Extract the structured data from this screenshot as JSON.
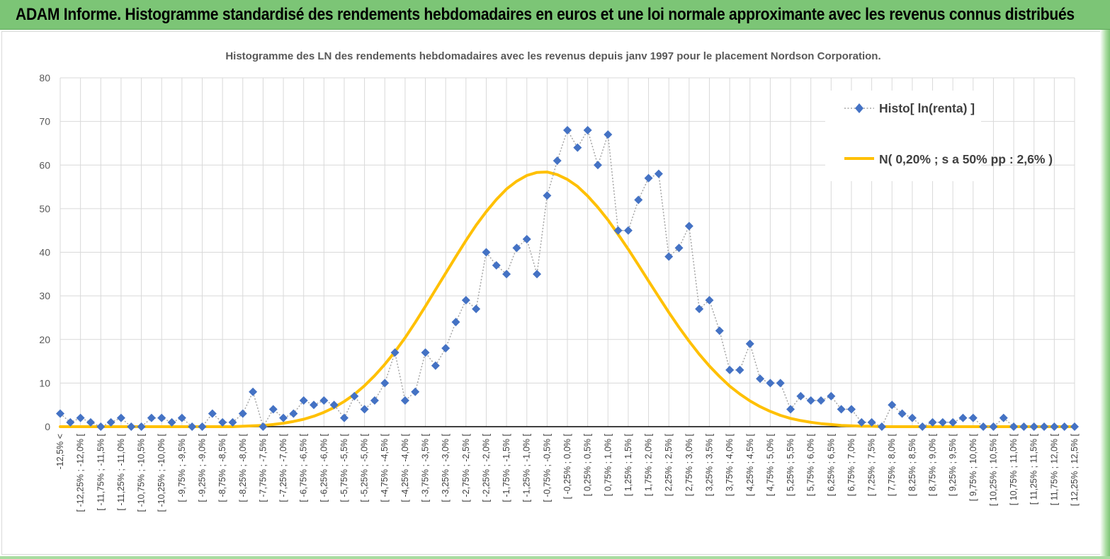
{
  "header": {
    "title": "ADAM Informe. Histogramme standardisé des rendements hebdomadaires en euros et une loi normale approximante avec les revenus connus distribués"
  },
  "colors": {
    "header_bg": "#7cc576",
    "histo_marker": "#4472c4",
    "histo_line": "#a5a5a5",
    "normal_line": "#ffc000",
    "axis": "#000000",
    "grid": "#d9d9d9"
  },
  "chart_data": {
    "type": "line",
    "title": "Histogramme des LN des rendements hebdomadaires avec les revenus depuis janv 1997 pour le placement Nordson Corporation.",
    "ylim": [
      0,
      80
    ],
    "yticks": [
      0,
      10,
      20,
      30,
      40,
      50,
      60,
      70,
      80
    ],
    "grid": true,
    "legend_position": "top-right",
    "categories": [
      "-12,5% <",
      "[ -12,25% ; -12,0% [",
      "[ -11,75% ; -11,5% [",
      "[ -11,25% ; -11,0% [",
      "[ -10,75% ; -10,5% [",
      "[ -10,25% ; -10,0% [",
      "[ -9,75% ; -9,5% [",
      "[ -9,25% ; -9,0% [",
      "[ -8,75% ; -8,5% [",
      "[ -8,25% ; -8,0% [",
      "[ -7,75% ; -7,5% [",
      "[ -7,25% ; -7,0% [",
      "[ -6,75% ; -6,5% [",
      "[ -6,25% ; -6,0% [",
      "[ -5,75% ; -5,5% [",
      "[ -5,25% ; -5,0% [",
      "[ -4,75% ; -4,5% [",
      "[ -4,25% ; -4,0% [",
      "[ -3,75% ; -3,5% [",
      "[ -3,25% ; -3,0% [",
      "[ -2,75% ; -2,5% [",
      "[ -2,25% ; -2,0% [",
      "[ -1,75% ; -1,5% [",
      "[ -1,25% ; -1,0% [",
      "[ -0,75% ; -0,5% [",
      "[ -0,25% ; 0,0% [",
      "[ 0,25% ; 0,5% [",
      "[ 0,75% ; 1,0% [",
      "[ 1,25% ; 1,5% [",
      "[ 1,75% ; 2,0% [",
      "[ 2,25% ; 2,5% [",
      "[ 2,75% ; 3,0% [",
      "[ 3,25% ; 3,5% [",
      "[ 3,75% ; 4,0% [",
      "[ 4,25% ; 4,5% [",
      "[ 4,75% ; 5,0% [",
      "[ 5,25% ; 5,5% [",
      "[ 5,75% ; 6,0% [",
      "[ 6,25% ; 6,5% [",
      "[ 6,75% ; 7,0% [",
      "[ 7,25% ; 7,5% [",
      "[ 7,75% ; 8,0% [",
      "[ 8,25% ; 8,5% [",
      "[ 8,75% ; 9,0% [",
      "[ 9,25% ; 9,5% [",
      "[ 9,75% ; 10,0% [",
      "[ 10,25% ; 10,5% [",
      "[ 10,75% ; 11,0% [",
      "[ 11,25% ; 11,5% [",
      "[ 11,75% ; 12,0% [",
      "[ 12,25% ; 12,5% ["
    ],
    "x": [
      -12.5,
      -12.25,
      -12.0,
      -11.75,
      -11.5,
      -11.25,
      -11.0,
      -10.75,
      -10.5,
      -10.25,
      -10.0,
      -9.75,
      -9.5,
      -9.25,
      -9.0,
      -8.75,
      -8.5,
      -8.25,
      -8.0,
      -7.75,
      -7.5,
      -7.25,
      -7.0,
      -6.75,
      -6.5,
      -6.25,
      -6.0,
      -5.75,
      -5.5,
      -5.25,
      -5.0,
      -4.75,
      -4.5,
      -4.25,
      -4.0,
      -3.75,
      -3.5,
      -3.25,
      -3.0,
      -2.75,
      -2.5,
      -2.25,
      -2.0,
      -1.75,
      -1.5,
      -1.25,
      -1.0,
      -0.75,
      -0.5,
      -0.25,
      0.0,
      0.25,
      0.5,
      0.75,
      1.0,
      1.25,
      1.5,
      1.75,
      2.0,
      2.25,
      2.5,
      2.75,
      3.0,
      3.25,
      3.5,
      3.75,
      4.0,
      4.25,
      4.5,
      4.75,
      5.0,
      5.25,
      5.5,
      5.75,
      6.0,
      6.25,
      6.5,
      6.75,
      7.0,
      7.25,
      7.5,
      7.75,
      8.0,
      8.25,
      8.5,
      8.75,
      9.0,
      9.25,
      9.5,
      9.75,
      10.0,
      10.25,
      10.5,
      10.75,
      11.0,
      11.25,
      11.5,
      11.75,
      12.0,
      12.25,
      12.5
    ],
    "series": [
      {
        "name": "Histo[ ln(renta) ]",
        "type": "line-marker",
        "values": [
          3,
          1,
          2,
          1,
          0,
          1,
          2,
          0,
          0,
          2,
          2,
          1,
          2,
          0,
          0,
          3,
          1,
          1,
          3,
          8,
          0,
          4,
          2,
          3,
          6,
          5,
          6,
          5,
          2,
          7,
          4,
          6,
          10,
          17,
          6,
          8,
          17,
          14,
          18,
          24,
          29,
          27,
          40,
          37,
          35,
          41,
          43,
          35,
          53,
          61,
          68,
          64,
          68,
          60,
          67,
          45,
          45,
          52,
          57,
          58,
          39,
          41,
          46,
          27,
          29,
          22,
          13,
          13,
          19,
          11,
          10,
          10,
          4,
          7,
          6,
          6,
          7,
          4,
          4,
          1,
          1,
          0,
          5,
          3,
          2,
          0,
          1,
          1,
          1,
          2,
          2,
          0,
          0,
          2,
          0,
          0,
          0,
          0,
          0,
          0,
          0
        ]
      },
      {
        "name": "N( 0,20% ; s a 50% pp : 2,6% )",
        "type": "line",
        "values": [
          0,
          0,
          0,
          0,
          0,
          0,
          0,
          0,
          0,
          0,
          0,
          0,
          0,
          0,
          0,
          0,
          0,
          0,
          0.1,
          0.2,
          0.3,
          0.5,
          0.8,
          1.2,
          1.7,
          2.4,
          3.3,
          4.4,
          5.8,
          7.4,
          9.4,
          11.7,
          14.3,
          17.2,
          20.4,
          23.9,
          27.6,
          31.4,
          35.2,
          39.0,
          42.7,
          46.2,
          49.3,
          52.1,
          54.5,
          56.3,
          57.6,
          58.3,
          58.4,
          57.8,
          56.7,
          55.1,
          52.9,
          50.3,
          47.4,
          44.1,
          40.7,
          37.1,
          33.4,
          29.8,
          26.2,
          22.8,
          19.6,
          16.6,
          13.9,
          11.5,
          9.3,
          7.5,
          5.9,
          4.6,
          3.5,
          2.6,
          1.9,
          1.4,
          1.0,
          0.7,
          0.5,
          0.3,
          0.2,
          0.1,
          0.1,
          0,
          0,
          0,
          0,
          0,
          0,
          0,
          0,
          0,
          0,
          0,
          0,
          0,
          0,
          0,
          0,
          0,
          0,
          0,
          0
        ]
      }
    ]
  }
}
